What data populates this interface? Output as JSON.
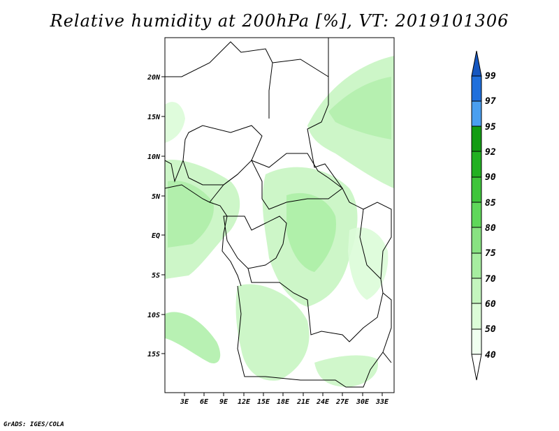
{
  "title": "Relative humidity at 200hPa [%], VT: 2019101306",
  "credit": "GrADS: IGES/COLA",
  "map": {
    "lat_labels": [
      "20N",
      "15N",
      "10N",
      "5N",
      "EQ",
      "5S",
      "10S",
      "15S"
    ],
    "lon_labels": [
      "3E",
      "6E",
      "9E",
      "12E",
      "15E",
      "18E",
      "21E",
      "24E",
      "27E",
      "30E",
      "33E"
    ]
  },
  "colorbar": {
    "levels": [
      "40",
      "50",
      "60",
      "70",
      "75",
      "80",
      "85",
      "90",
      "92",
      "95",
      "97",
      "99"
    ],
    "colors": [
      "#f0fff0",
      "#dcfcd8",
      "#c4f5be",
      "#a6eda0",
      "#88e282",
      "#5fd75a",
      "#3fc53b",
      "#22b022",
      "#139c13",
      "#4a9ff0",
      "#1f6fdc",
      "#1556c0"
    ]
  }
}
